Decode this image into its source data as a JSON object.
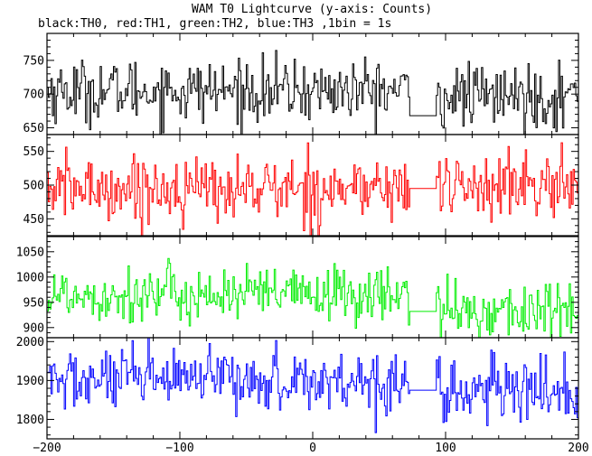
{
  "chart_data": {
    "type": "line",
    "title": "WAM T0 Lightcurve (y-axis: Counts)",
    "subtitle": "black:TH0, red:TH1, green:TH2, blue:TH3 ,1bin = 1s",
    "xlabel": "",
    "x_ticks": [
      "−200",
      "−100",
      "0",
      "100",
      "200"
    ],
    "xlim": [
      -200,
      200
    ],
    "gap": [
      73,
      93
    ],
    "bin_seconds": 1,
    "panels": [
      {
        "name": "TH0",
        "color": "#000000",
        "ylim": [
          640,
          790
        ],
        "y_ticks": [
          650,
          700,
          750
        ],
        "y_tick_labels": [
          "650",
          "700",
          "750"
        ],
        "mean_before": 705,
        "mean_after": 697,
        "gap_level": 668,
        "noise": 23
      },
      {
        "name": "TH1",
        "color": "#ff0000",
        "ylim": [
          425,
          575
        ],
        "y_ticks": [
          450,
          500,
          550
        ],
        "y_tick_labels": [
          "450",
          "500",
          "550"
        ],
        "mean_before": 495,
        "mean_after": 498,
        "gap_level": 495,
        "noise": 24
      },
      {
        "name": "TH2",
        "color": "#00ee00",
        "ylim": [
          880,
          1080
        ],
        "y_ticks": [
          900,
          950,
          1000,
          1050
        ],
        "y_tick_labels": [
          "900",
          "950",
          "1000",
          "1050"
        ],
        "mean_before": 965,
        "mean_after": 932,
        "gap_level": 932,
        "noise": 28
      },
      {
        "name": "TH3",
        "color": "#0000ff",
        "ylim": [
          1750,
          2010
        ],
        "y_ticks": [
          1800,
          1900,
          2000
        ],
        "y_tick_labels": [
          "1800",
          "1900",
          "2000"
        ],
        "mean_before": 1900,
        "mean_after": 1872,
        "gap_level": 1875,
        "noise": 40
      }
    ]
  }
}
